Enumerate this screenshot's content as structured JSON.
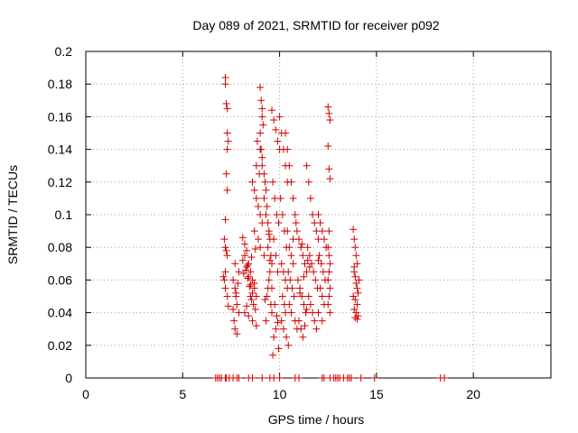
{
  "chart_data": {
    "type": "scatter",
    "title": "Day 089 of 2021, SRMTID for receiver p092",
    "xlabel": "GPS time / hours",
    "ylabel": "SRMTID / TECUs",
    "xlim": [
      0,
      24
    ],
    "ylim": [
      0,
      0.2
    ],
    "xticks": [
      0,
      5,
      10,
      15,
      20
    ],
    "xtick_labels": [
      "0",
      "5",
      "10",
      "15",
      "20"
    ],
    "yticks": [
      0,
      0.02,
      0.04,
      0.06,
      0.08,
      0.1,
      0.12,
      0.14,
      0.16,
      0.18,
      0.2
    ],
    "ytick_labels": [
      "0",
      "0.02",
      "0.04",
      "0.06",
      "0.08",
      "0.1",
      "0.12",
      "0.14",
      "0.16",
      "0.18",
      "0.2"
    ],
    "grid": true,
    "marker": "+",
    "color": "#d00000",
    "series": [
      {
        "name": "SRMTID",
        "x": [
          6.7,
          6.8,
          6.9,
          7.0,
          7.2,
          7.25,
          7.4,
          7.6,
          7.8,
          7.9,
          8.4,
          8.6,
          9.1,
          9.5,
          9.7,
          10.0,
          10.8,
          11.0,
          12.2,
          12.3,
          12.6,
          12.8,
          12.9,
          13.0,
          13.1,
          13.3,
          13.5,
          13.6,
          13.7,
          14.2,
          14.9,
          18.3,
          18.5,
          7.2,
          7.2,
          7.25,
          7.3,
          7.3,
          7.35,
          7.3,
          7.25,
          7.3,
          7.2,
          7.15,
          7.2,
          7.25,
          7.3,
          7.2,
          7.1,
          7.15,
          7.2,
          7.3,
          7.35,
          7.6,
          7.7,
          7.75,
          7.8,
          7.9,
          7.65,
          7.7,
          7.8,
          7.6,
          7.75,
          7.85,
          7.9,
          7.7,
          8.1,
          8.2,
          8.3,
          8.4,
          8.5,
          8.6,
          8.7,
          8.8,
          8.2,
          8.3,
          8.4,
          8.5,
          8.6,
          8.1,
          8.25,
          8.35,
          8.45,
          8.55,
          8.65,
          8.75,
          8.2,
          8.4,
          8.6,
          8.8,
          8.3,
          8.5,
          8.7,
          8.15,
          8.35,
          8.55,
          8.75,
          8.6,
          8.7,
          8.8,
          8.9,
          9.0,
          9.1,
          8.7,
          8.9,
          9.0,
          9.2,
          8.8,
          9.0,
          9.1,
          8.85,
          8.95,
          9.0,
          9.05,
          9.1,
          9.1,
          9.15,
          9.0,
          9.05,
          9.1,
          9.2,
          9.25,
          9.3,
          9.2,
          9.35,
          9.3,
          9.4,
          9.45,
          9.5,
          9.4,
          9.55,
          9.6,
          9.5,
          9.45,
          9.4,
          9.35,
          9.55,
          9.6,
          9.3,
          9.25,
          9.5,
          9.45,
          9.6,
          9.7,
          9.8,
          9.9,
          10.0,
          9.65,
          9.75,
          9.85,
          9.95,
          9.7,
          9.8,
          9.9,
          9.6,
          9.75,
          9.85,
          9.9,
          9.8,
          9.7,
          9.95,
          9.65,
          10.0,
          10.1,
          10.2,
          10.3,
          10.4,
          10.05,
          10.15,
          10.25,
          10.35,
          10.1,
          10.2,
          10.3,
          10.4,
          10.15,
          10.25,
          10.3,
          10.1,
          10.2,
          10.35,
          10.45,
          10.3,
          10.4,
          10.5,
          10.6,
          10.7,
          10.8,
          10.4,
          10.5,
          10.6,
          10.7,
          10.45,
          10.55,
          10.65,
          10.75,
          10.5,
          10.6,
          10.8,
          10.9,
          10.7,
          10.85,
          10.9,
          11.0,
          11.1,
          11.2,
          11.3,
          11.4,
          10.95,
          11.05,
          11.15,
          11.25,
          11.35,
          11.0,
          11.1,
          11.2,
          11.3,
          11.4,
          11.05,
          11.25,
          11.45,
          11.15,
          11.4,
          11.5,
          11.6,
          11.7,
          11.8,
          11.9,
          12.0,
          11.45,
          11.55,
          11.65,
          11.75,
          11.85,
          11.95,
          11.5,
          11.6,
          11.7,
          11.8,
          11.9,
          12.0,
          11.55,
          12.0,
          12.1,
          12.2,
          12.3,
          12.4,
          12.05,
          12.15,
          12.25,
          12.35,
          12.1,
          12.2,
          12.3,
          12.0,
          12.2,
          12.5,
          12.55,
          12.6,
          12.5,
          12.55,
          12.6,
          12.55,
          12.5,
          12.6,
          12.55,
          12.5,
          12.6,
          12.55,
          12.5,
          12.6,
          12.55,
          13.8,
          13.85,
          13.9,
          13.95,
          14.0,
          13.85,
          13.9,
          13.95,
          14.0,
          14.05,
          13.8,
          13.9,
          14.0,
          13.85,
          13.95,
          14.05,
          13.9,
          14.0,
          14.1,
          13.85
        ],
        "y": [
          0,
          0,
          0,
          0,
          0,
          0,
          0,
          0,
          0,
          0,
          0,
          0,
          0,
          0,
          0,
          0,
          0,
          0,
          0,
          0,
          0,
          0,
          0,
          0,
          0,
          0,
          0,
          0,
          0,
          0,
          0,
          0,
          0,
          0.184,
          0.18,
          0.168,
          0.165,
          0.15,
          0.145,
          0.14,
          0.125,
          0.115,
          0.097,
          0.085,
          0.08,
          0.078,
          0.075,
          0.065,
          0.062,
          0.06,
          0.055,
          0.05,
          0.044,
          0.06,
          0.055,
          0.05,
          0.045,
          0.04,
          0.035,
          0.03,
          0.027,
          0.042,
          0.052,
          0.058,
          0.065,
          0.07,
          0.086,
          0.082,
          0.078,
          0.07,
          0.065,
          0.06,
          0.055,
          0.05,
          0.075,
          0.068,
          0.062,
          0.057,
          0.052,
          0.072,
          0.066,
          0.061,
          0.056,
          0.048,
          0.045,
          0.042,
          0.04,
          0.038,
          0.035,
          0.032,
          0.044,
          0.05,
          0.058,
          0.064,
          0.069,
          0.074,
          0.079,
          0.12,
          0.115,
          0.11,
          0.105,
          0.1,
          0.095,
          0.09,
          0.085,
          0.08,
          0.075,
          0.13,
          0.14,
          0.135,
          0.145,
          0.125,
          0.178,
          0.17,
          0.165,
          0.16,
          0.155,
          0.15,
          0.14,
          0.13,
          0.125,
          0.12,
          0.115,
          0.11,
          0.105,
          0.1,
          0.095,
          0.09,
          0.085,
          0.08,
          0.075,
          0.07,
          0.065,
          0.06,
          0.055,
          0.05,
          0.045,
          0.04,
          0.035,
          0.048,
          0.072,
          0.088,
          0.164,
          0.158,
          0.152,
          0.145,
          0.14,
          0.12,
          0.11,
          0.1,
          0.095,
          0.085,
          0.075,
          0.065,
          0.055,
          0.045,
          0.038,
          0.034,
          0.03,
          0.025,
          0.018,
          0.014,
          0.16,
          0.15,
          0.14,
          0.13,
          0.12,
          0.11,
          0.1,
          0.09,
          0.08,
          0.07,
          0.065,
          0.06,
          0.055,
          0.05,
          0.045,
          0.04,
          0.035,
          0.03,
          0.025,
          0.02,
          0.15,
          0.14,
          0.13,
          0.12,
          0.11,
          0.1,
          0.09,
          0.08,
          0.075,
          0.07,
          0.065,
          0.06,
          0.055,
          0.05,
          0.045,
          0.04,
          0.035,
          0.03,
          0.085,
          0.095,
          0.09,
          0.085,
          0.08,
          0.075,
          0.07,
          0.065,
          0.06,
          0.055,
          0.05,
          0.045,
          0.04,
          0.035,
          0.03,
          0.025,
          0.032,
          0.042,
          0.052,
          0.062,
          0.072,
          0.082,
          0.13,
          0.12,
          0.11,
          0.1,
          0.095,
          0.09,
          0.085,
          0.08,
          0.075,
          0.07,
          0.065,
          0.06,
          0.055,
          0.05,
          0.045,
          0.04,
          0.035,
          0.03,
          0.072,
          0.068,
          0.1,
          0.095,
          0.09,
          0.085,
          0.08,
          0.075,
          0.07,
          0.065,
          0.06,
          0.055,
          0.05,
          0.045,
          0.04,
          0.035,
          0.166,
          0.162,
          0.158,
          0.142,
          0.128,
          0.122,
          0.09,
          0.08,
          0.07,
          0.065,
          0.06,
          0.055,
          0.05,
          0.045,
          0.04,
          0.075,
          0.091,
          0.085,
          0.08,
          0.075,
          0.07,
          0.065,
          0.062,
          0.058,
          0.055,
          0.052,
          0.05,
          0.048,
          0.045,
          0.042,
          0.04,
          0.038,
          0.037,
          0.036,
          0.06,
          0.068
        ]
      }
    ]
  }
}
